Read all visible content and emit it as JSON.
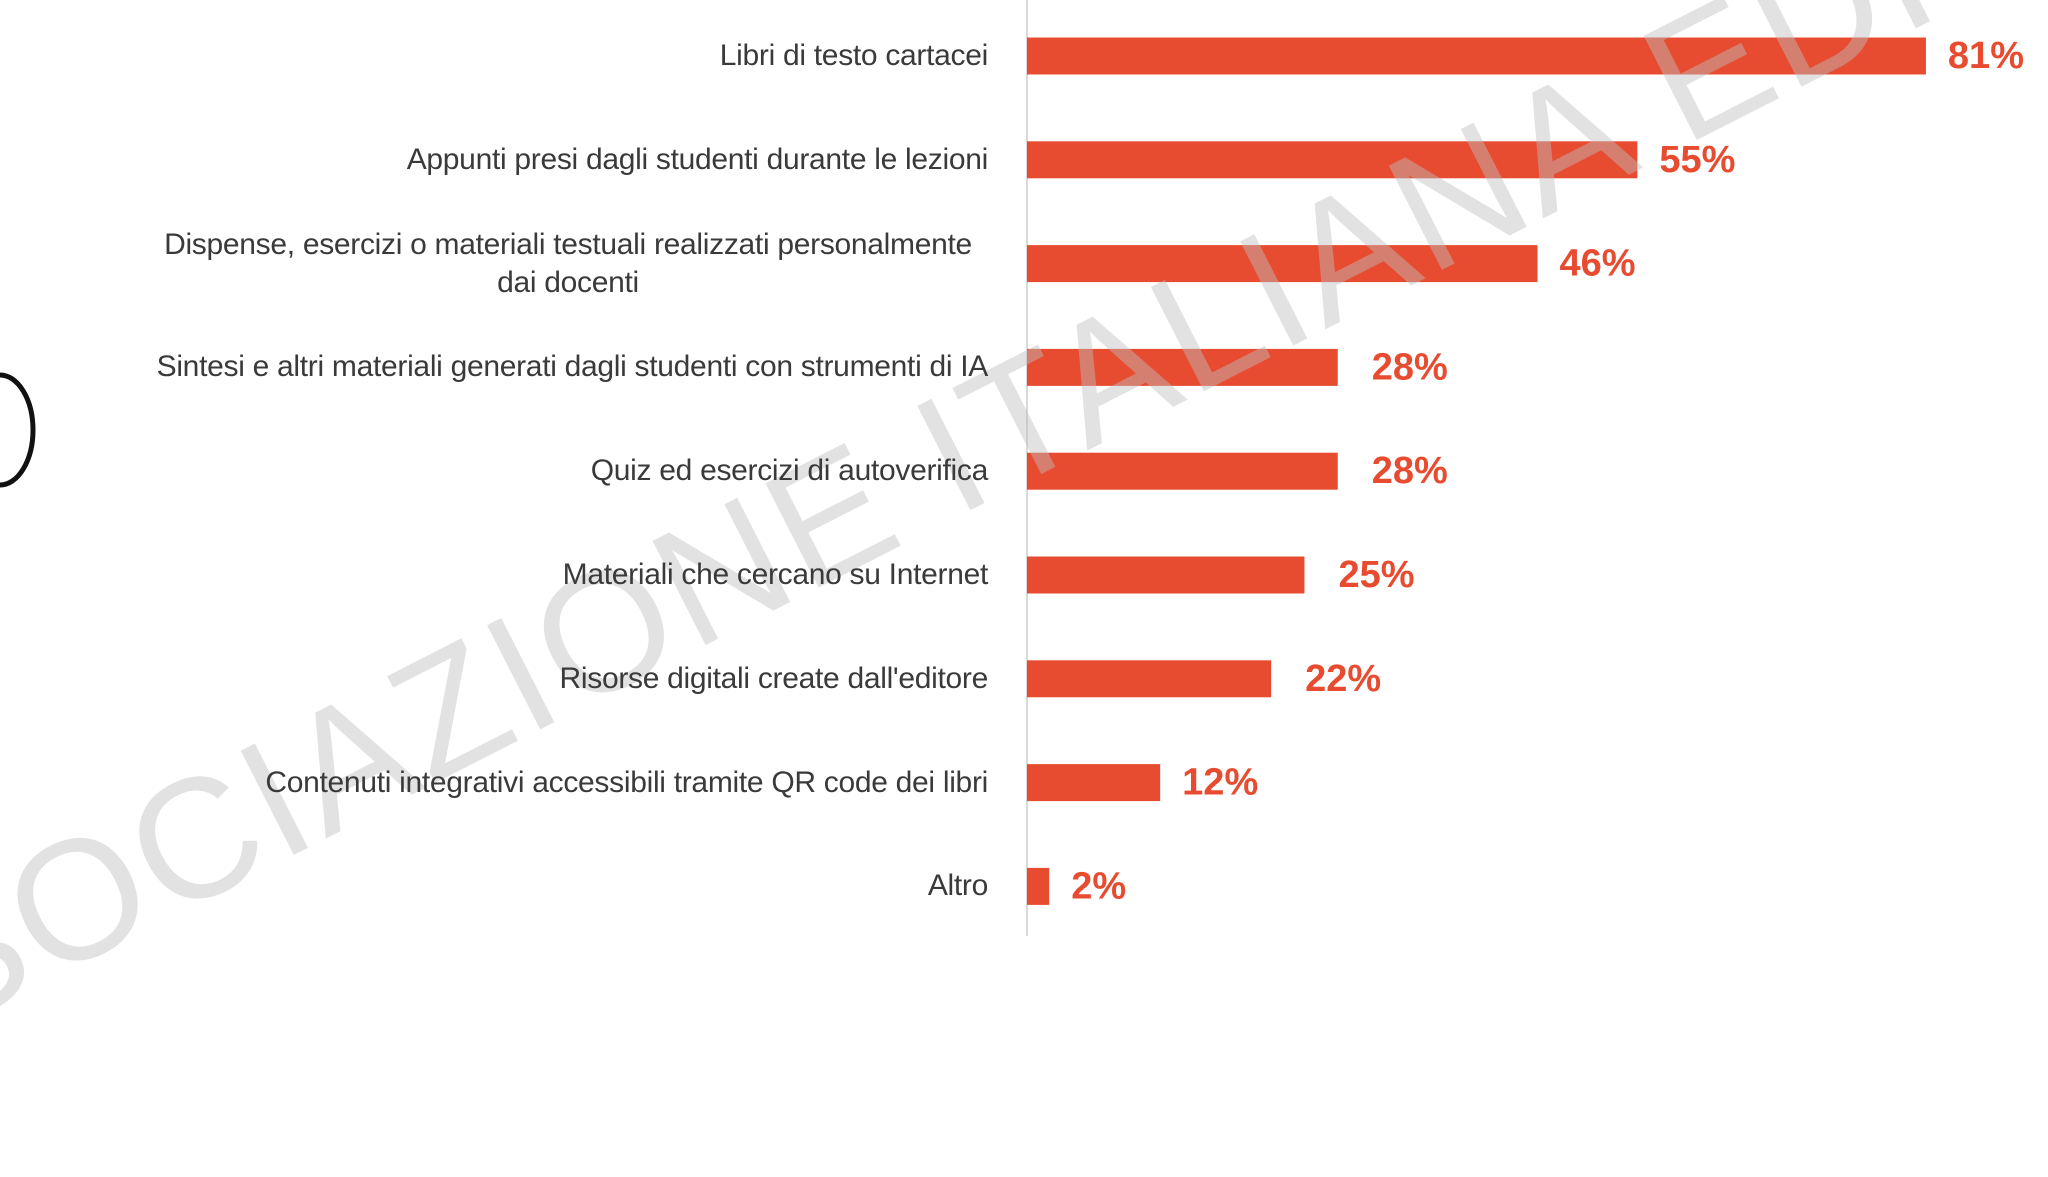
{
  "chart_data": {
    "type": "bar",
    "orientation": "horizontal",
    "categories": [
      "Libri di testo cartacei",
      "Appunti presi dagli studenti durante le lezioni",
      "Dispense, esercizi o materiali testuali realizzati personalmente dai docenti",
      "Sintesi e altri materiali generati dagli studenti con strumenti di IA",
      "Quiz ed esercizi di autoverifica",
      "Materiali che cercano su Internet",
      "Risorse digitali create dall'editore",
      "Contenuti integrativi accessibili tramite QR code dei libri",
      "Altro"
    ],
    "values": [
      81,
      55,
      46,
      28,
      28,
      25,
      22,
      12,
      2
    ],
    "value_labels": [
      "81%",
      "55%",
      "46%",
      "28%",
      "28%",
      "25%",
      "22%",
      "12%",
      "2%"
    ],
    "color": "#e84c30",
    "xlim": [
      0,
      92
    ],
    "watermark": "ASSOCIAZIONE ITALIANA EDITORI"
  }
}
